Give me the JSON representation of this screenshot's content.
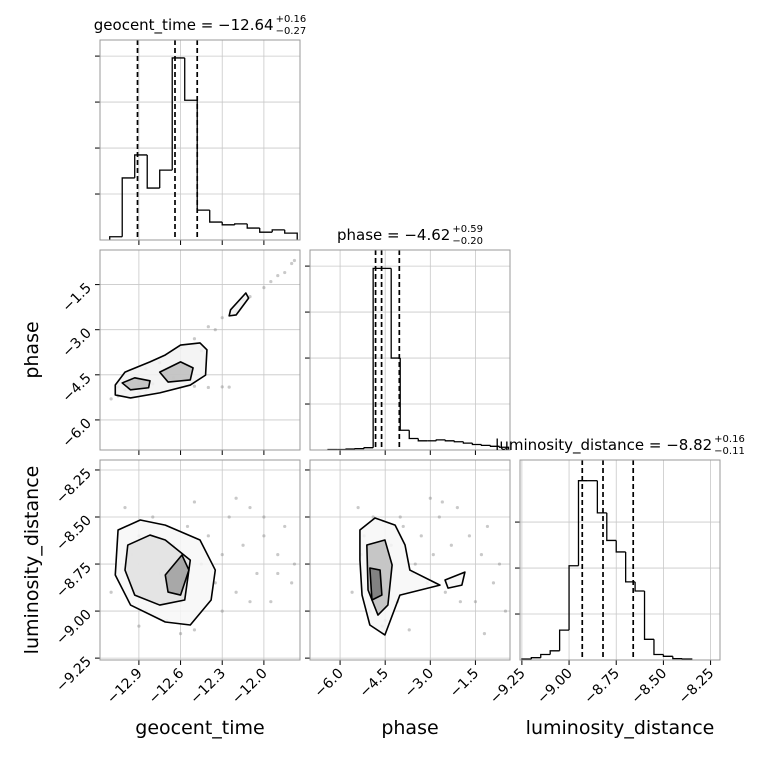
{
  "chart_data": [
    {
      "type": "histogram",
      "title": "geocent_time = −12.64",
      "title_upper": "+0.16",
      "title_lower": "−0.27",
      "bins": [
        -13.11,
        -13.02,
        -12.93,
        -12.84,
        -12.75,
        -12.66,
        -12.57,
        -12.48,
        -12.39,
        -12.3,
        -12.21,
        -12.12,
        -12.03,
        -11.94,
        -11.85,
        -11.76
      ],
      "values": [
        0.07,
        1.35,
        1.85,
        1.13,
        1.52,
        3.96,
        3.04,
        0.65,
        0.39,
        0.33,
        0.35,
        0.26,
        0.17,
        0.22,
        0.15
      ],
      "quantiles": [
        -12.91,
        -12.64,
        -12.48
      ],
      "xlim": [
        -13.18,
        -11.74
      ],
      "ylim": [
        0,
        4.35
      ],
      "yticks": [
        1,
        2,
        3,
        4
      ],
      "color": "#000000",
      "grid": true
    },
    {
      "type": "scatter",
      "ylabel": "phase",
      "xlim": [
        -13.18,
        -11.74
      ],
      "ylim": [
        -7.0,
        -0.35
      ],
      "yticks": [
        {
          "value": -6.0,
          "label": "−6.0"
        },
        {
          "value": -4.5,
          "label": "−4.5"
        },
        {
          "value": -3.0,
          "label": "−3.0"
        },
        {
          "value": -1.5,
          "label": "−1.5"
        }
      ],
      "x": [
        -13.1,
        -13.05,
        -13.0,
        -12.95,
        -12.9,
        -12.85,
        -12.8,
        -12.75,
        -12.7,
        -12.6,
        -12.55,
        -12.5,
        -12.45,
        -12.4,
        -12.3,
        -12.2,
        -12.15,
        -12.1,
        -12.0,
        -11.95,
        -11.9,
        -11.85,
        -11.8,
        -11.78,
        -12.6,
        -12.5,
        -12.4,
        -12.3,
        -12.25,
        -12.9,
        -12.85,
        -13.05,
        -12.7,
        -12.65,
        -12.35
      ],
      "y": [
        -5.3,
        -4.9,
        -5.0,
        -4.6,
        -5.1,
        -4.3,
        -4.8,
        -4.1,
        -4.5,
        -3.6,
        -4.2,
        -3.3,
        -3.7,
        -2.9,
        -2.6,
        -2.4,
        -2.0,
        -1.9,
        -1.6,
        -1.4,
        -1.2,
        -1.1,
        -0.8,
        -0.7,
        -4.9,
        -4.88,
        -4.92,
        -4.9,
        -4.91,
        -4.85,
        -5.0,
        -5.2,
        -4.4,
        -4.6,
        -3.0
      ],
      "point_color": "#888888",
      "grid": true,
      "contours": [
        {
          "x": [
            -13.07,
            -13.0,
            -12.82,
            -12.71,
            -12.6,
            -12.46,
            -12.41,
            -12.42,
            -12.53,
            -12.75,
            -12.96,
            -13.07
          ],
          "y": [
            -4.84,
            -4.41,
            -4.07,
            -3.84,
            -3.51,
            -3.44,
            -3.67,
            -4.51,
            -4.84,
            -5.1,
            -5.27,
            -5.17
          ],
          "fill": "#f2f2f2"
        },
        {
          "x": [
            -13.02,
            -12.93,
            -12.82,
            -12.83,
            -12.96
          ],
          "y": [
            -4.77,
            -4.6,
            -4.7,
            -4.93,
            -5.0
          ],
          "fill": "#bdbdbd"
        },
        {
          "x": [
            -12.75,
            -12.6,
            -12.51,
            -12.53,
            -12.69
          ],
          "y": [
            -4.41,
            -4.07,
            -4.27,
            -4.67,
            -4.74
          ],
          "fill": "#bdbdbd"
        },
        {
          "x": [
            -12.24,
            -12.13,
            -12.11,
            -12.2,
            -12.25
          ],
          "y": [
            -2.34,
            -1.78,
            -1.95,
            -2.51,
            -2.54
          ],
          "fill": "#f2f2f2"
        }
      ]
    },
    {
      "type": "histogram",
      "title": "phase = −4.62",
      "title_upper": "+0.59",
      "title_lower": "−0.20",
      "bins": [
        -6.4,
        -6.1,
        -5.8,
        -5.5,
        -5.2,
        -4.9,
        -4.6,
        -4.3,
        -4.0,
        -3.7,
        -3.4,
        -3.1,
        -2.8,
        -2.5,
        -2.2,
        -1.9,
        -1.6,
        -1.3,
        -1.0,
        -0.7,
        -0.4
      ],
      "values": [
        0.01,
        0.01,
        0.02,
        0.03,
        0.05,
        3.95,
        3.95,
        2.0,
        0.43,
        0.25,
        0.2,
        0.2,
        0.22,
        0.2,
        0.18,
        0.15,
        0.12,
        0.1,
        0.08,
        0.06
      ],
      "quantiles": [
        -4.82,
        -4.62,
        -4.03
      ],
      "xlim": [
        -7.0,
        -0.35
      ],
      "ylim": [
        0,
        4.35
      ],
      "yticks": [
        1,
        2,
        3,
        4
      ],
      "color": "#000000",
      "grid": true
    },
    {
      "type": "scatter",
      "xlabel": "geocent_time",
      "ylabel": "luminosity_distance",
      "xlim": [
        -13.18,
        -11.74
      ],
      "ylim": [
        -9.26,
        -8.197
      ],
      "xticks": [
        {
          "value": -12.9,
          "label": "−12.9"
        },
        {
          "value": -12.6,
          "label": "−12.6"
        },
        {
          "value": -12.3,
          "label": "−12.3"
        },
        {
          "value": -12.0,
          "label": "−12.0"
        }
      ],
      "yticks": [
        {
          "value": -9.25,
          "label": "−9.25"
        },
        {
          "value": -9.0,
          "label": "−9.00"
        },
        {
          "value": -8.75,
          "label": "−8.75"
        },
        {
          "value": -8.5,
          "label": "−8.50"
        },
        {
          "value": -8.25,
          "label": "−8.25"
        }
      ],
      "x": [
        -13.1,
        -13.0,
        -12.95,
        -12.9,
        -12.85,
        -12.8,
        -12.75,
        -12.7,
        -12.65,
        -12.6,
        -12.55,
        -12.5,
        -12.45,
        -12.4,
        -12.35,
        -12.3,
        -12.25,
        -12.2,
        -12.15,
        -12.1,
        -12.05,
        -12.0,
        -11.95,
        -11.9,
        -11.85,
        -11.8,
        -11.78,
        -12.3,
        -12.2,
        -12.1,
        -12.0,
        -11.9,
        -12.6,
        -12.5,
        -12.9
      ],
      "y": [
        -8.9,
        -8.45,
        -8.7,
        -8.6,
        -9.0,
        -8.5,
        -8.8,
        -9.05,
        -8.65,
        -8.95,
        -8.55,
        -9.1,
        -8.75,
        -8.6,
        -8.85,
        -8.7,
        -8.5,
        -8.9,
        -8.65,
        -8.45,
        -8.8,
        -8.6,
        -8.95,
        -8.7,
        -8.55,
        -8.85,
        -8.75,
        -9.0,
        -8.4,
        -8.95,
        -8.5,
        -8.8,
        -9.12,
        -8.42,
        -9.08
      ],
      "point_color": "#888888",
      "grid": true,
      "contours": [
        {
          "x": [
            -13.05,
            -12.89,
            -12.71,
            -12.46,
            -12.35,
            -12.38,
            -12.53,
            -12.71,
            -12.96,
            -13.07
          ],
          "y": [
            -8.569,
            -8.516,
            -8.543,
            -8.622,
            -8.782,
            -8.941,
            -9.074,
            -9.058,
            -8.968,
            -8.808
          ],
          "fill": "#f7f7f7"
        },
        {
          "x": [
            -12.98,
            -12.82,
            -12.71,
            -12.53,
            -12.57,
            -12.75,
            -12.93,
            -13.0
          ],
          "y": [
            -8.649,
            -8.596,
            -8.622,
            -8.729,
            -8.941,
            -8.968,
            -8.915,
            -8.782
          ],
          "fill": "#e0e0e0"
        },
        {
          "x": [
            -12.71,
            -12.59,
            -12.54,
            -12.6,
            -12.69
          ],
          "y": [
            -8.808,
            -8.702,
            -8.782,
            -8.915,
            -8.899
          ],
          "fill": "#9e9e9e"
        }
      ]
    },
    {
      "type": "scatter",
      "xlabel": "phase",
      "xlim": [
        -7.0,
        -0.35
      ],
      "ylim": [
        -9.26,
        -8.197
      ],
      "xticks": [
        {
          "value": -6.0,
          "label": "−6.0"
        },
        {
          "value": -4.5,
          "label": "−4.5"
        },
        {
          "value": -3.0,
          "label": "−3.0"
        },
        {
          "value": -1.5,
          "label": "−1.5"
        }
      ],
      "x": [
        -5.6,
        -5.4,
        -5.3,
        -5.2,
        -5.0,
        -4.9,
        -4.7,
        -4.5,
        -4.3,
        -4.1,
        -3.9,
        -3.7,
        -3.5,
        -3.3,
        -3.1,
        -2.9,
        -2.7,
        -2.5,
        -2.3,
        -2.1,
        -1.9,
        -1.7,
        -1.5,
        -1.3,
        -1.1,
        -0.9,
        -0.7,
        -0.5,
        -3.0,
        -2.0,
        -4.0,
        -3.6,
        -1.2,
        -2.6,
        -4.6
      ],
      "y": [
        -8.9,
        -8.45,
        -8.7,
        -8.6,
        -9.0,
        -8.5,
        -8.8,
        -9.05,
        -8.65,
        -8.95,
        -8.55,
        -9.1,
        -8.75,
        -8.6,
        -8.85,
        -8.7,
        -8.5,
        -8.9,
        -8.65,
        -8.45,
        -8.8,
        -8.6,
        -8.95,
        -8.7,
        -8.55,
        -8.85,
        -8.75,
        -9.0,
        -8.4,
        -8.95,
        -8.5,
        -8.8,
        -9.12,
        -8.42,
        -9.08
      ],
      "point_color": "#888888",
      "grid": true,
      "contours": [
        {
          "x": [
            -5.34,
            -4.84,
            -4.17,
            -3.84,
            -3.68,
            -2.68,
            -4.01,
            -4.51,
            -5.01,
            -5.27,
            -5.34
          ],
          "y": [
            -8.569,
            -8.505,
            -8.543,
            -8.649,
            -8.782,
            -8.862,
            -8.915,
            -9.127,
            -9.074,
            -8.915,
            -8.729
          ],
          "fill": "#f7f7f7"
        },
        {
          "x": [
            -5.11,
            -4.51,
            -4.27,
            -4.41,
            -4.74,
            -5.07
          ],
          "y": [
            -8.649,
            -8.622,
            -8.755,
            -8.968,
            -9.021,
            -8.888
          ],
          "fill": "#bdbdbd"
        },
        {
          "x": [
            -5.01,
            -4.67,
            -4.61,
            -4.94
          ],
          "y": [
            -8.771,
            -8.782,
            -8.915,
            -8.941
          ],
          "fill": "#757575"
        },
        {
          "x": [
            -2.51,
            -1.85,
            -1.95,
            -2.41
          ],
          "y": [
            -8.835,
            -8.793,
            -8.862,
            -8.878
          ],
          "fill": "#f7f7f7"
        }
      ]
    },
    {
      "type": "histogram",
      "title": "luminosity_distance = −8.82",
      "title_upper": "+0.16",
      "title_lower": "−0.11",
      "xlabel": "luminosity_distance",
      "bins": [
        -9.25,
        -9.2,
        -9.15,
        -9.1,
        -9.05,
        -9.0,
        -8.95,
        -8.9,
        -8.85,
        -8.8,
        -8.75,
        -8.7,
        -8.65,
        -8.6,
        -8.55,
        -8.5,
        -8.45,
        -8.4,
        -8.35
      ],
      "values": [
        0.02,
        0.05,
        0.12,
        0.2,
        0.65,
        2.05,
        3.9,
        3.9,
        3.2,
        2.6,
        2.35,
        1.7,
        1.5,
        0.45,
        0.12,
        0.08,
        0.03,
        0.02
      ],
      "quantiles": [
        -8.93,
        -8.82,
        -8.66
      ],
      "xlim": [
        -9.26,
        -8.2
      ],
      "ylim": [
        0,
        4.35
      ],
      "yticks": [
        1,
        2,
        3
      ],
      "xticks": [
        {
          "value": -9.25,
          "label": "−9.25"
        },
        {
          "value": -9.0,
          "label": "−9.00"
        },
        {
          "value": -8.75,
          "label": "−8.75"
        },
        {
          "value": -8.5,
          "label": "−8.50"
        },
        {
          "value": -8.25,
          "label": "−8.25"
        }
      ],
      "color": "#000000",
      "grid": true
    }
  ]
}
